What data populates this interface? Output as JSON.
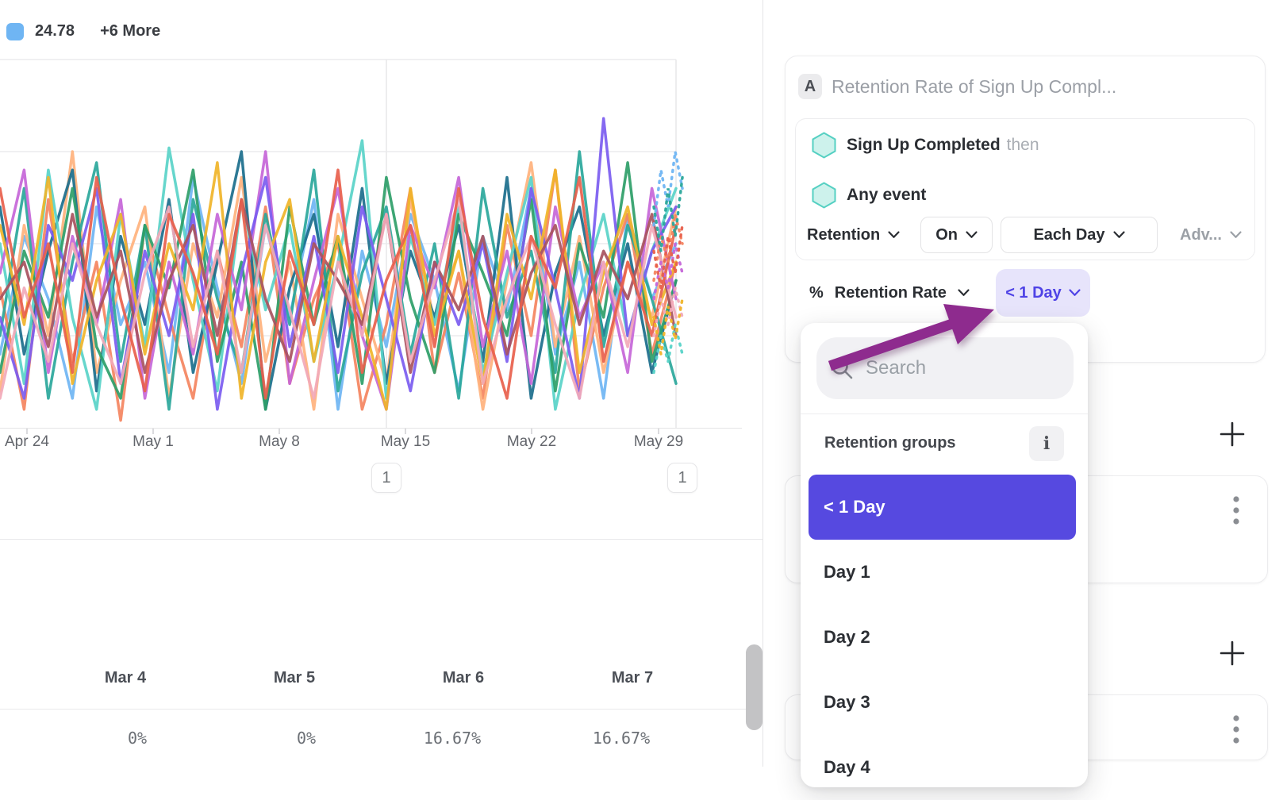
{
  "legend": {
    "swatch_color": "#6fb5f3",
    "series_label": "24.78",
    "more_label": "+6 More"
  },
  "chart_data": {
    "type": "line",
    "title": "",
    "xlabel": "",
    "ylabel": "",
    "x_tick_labels": [
      "Apr 24",
      "May 1",
      "May 8",
      "May 15",
      "May 22",
      "May 29"
    ],
    "x_tick_positions": [
      34,
      193,
      352,
      511,
      670,
      830
    ],
    "y_axis": {
      "min": 0,
      "max": 100,
      "gridline_values": [
        25,
        50,
        75,
        100
      ],
      "labels_visible": false
    },
    "grid": true,
    "legend_position": "top-left",
    "legend_visible_series": "24.78",
    "legend_hidden_count": 6,
    "annotation_markers": [
      {
        "label": "1",
        "x": 487
      },
      {
        "label": "1",
        "x": 852
      }
    ],
    "series": [
      {
        "name": "24.78",
        "color": "#6fb5f3",
        "values": [
          20,
          52,
          35,
          8,
          60,
          28,
          45,
          15,
          68,
          38,
          12,
          55,
          30,
          62,
          5,
          48,
          22,
          58,
          40,
          10,
          52,
          32,
          65,
          20,
          45,
          8,
          58,
          35,
          50
        ]
      },
      {
        "color": "#f4845f",
        "values": [
          38,
          5,
          62,
          18,
          45,
          2,
          55,
          30,
          8,
          48,
          22,
          60,
          12,
          35,
          50,
          5,
          28,
          65,
          15,
          42,
          8,
          55,
          25,
          70,
          10,
          38,
          58,
          20,
          45
        ]
      },
      {
        "color": "#ffb27d",
        "values": [
          10,
          55,
          25,
          75,
          15,
          40,
          60,
          8,
          50,
          30,
          68,
          18,
          45,
          5,
          58,
          35,
          12,
          62,
          28,
          48,
          5,
          40,
          72,
          22,
          52,
          15,
          45,
          30,
          60
        ]
      },
      {
        "color": "#1b6e8c",
        "values": [
          60,
          20,
          48,
          70,
          10,
          52,
          28,
          62,
          15,
          45,
          75,
          5,
          38,
          58,
          22,
          65,
          12,
          48,
          30,
          55,
          18,
          68,
          8,
          42,
          60,
          25,
          50,
          15,
          40
        ]
      },
      {
        "color": "#2aa79b",
        "values": [
          25,
          65,
          8,
          45,
          72,
          18,
          55,
          5,
          62,
          35,
          15,
          58,
          28,
          70,
          10,
          42,
          60,
          20,
          50,
          8,
          65,
          30,
          48,
          15,
          75,
          22,
          55,
          35,
          12
        ]
      },
      {
        "color": "#59d3c8",
        "values": [
          50,
          12,
          70,
          30,
          5,
          58,
          22,
          76,
          40,
          10,
          62,
          32,
          55,
          18,
          45,
          78,
          8,
          52,
          28,
          60,
          15,
          42,
          68,
          5,
          35,
          58,
          25,
          48,
          65
        ]
      },
      {
        "color": "#2e9e68",
        "values": [
          15,
          48,
          30,
          65,
          22,
          8,
          55,
          38,
          70,
          18,
          45,
          5,
          60,
          28,
          52,
          12,
          68,
          35,
          15,
          58,
          42,
          25,
          62,
          10,
          50,
          30,
          72,
          18,
          40
        ]
      },
      {
        "color": "#c566d8",
        "values": [
          42,
          70,
          15,
          52,
          28,
          62,
          8,
          45,
          20,
          58,
          32,
          75,
          12,
          40,
          65,
          25,
          5,
          55,
          38,
          68,
          22,
          48,
          12,
          60,
          30,
          45,
          15,
          65,
          35
        ]
      },
      {
        "color": "#7b5cf0",
        "values": [
          30,
          8,
          55,
          40,
          65,
          12,
          48,
          25,
          58,
          5,
          42,
          68,
          22,
          52,
          15,
          60,
          35,
          10,
          45,
          28,
          50,
          18,
          65,
          38,
          8,
          84,
          25,
          48,
          60
        ]
      },
      {
        "color": "#f0b429",
        "values": [
          55,
          28,
          68,
          12,
          40,
          58,
          20,
          50,
          32,
          72,
          8,
          45,
          62,
          18,
          52,
          30,
          5,
          65,
          25,
          48,
          12,
          58,
          35,
          70,
          15,
          42,
          60,
          28,
          45
        ]
      },
      {
        "color": "#a8535e",
        "values": [
          35,
          45,
          22,
          58,
          30,
          48,
          15,
          40,
          55,
          25,
          62,
          35,
          18,
          50,
          40,
          28,
          58,
          15,
          45,
          32,
          52,
          20,
          42,
          55,
          28,
          48,
          35,
          58,
          25
        ]
      },
      {
        "color": "#f2a9b8",
        "values": [
          8,
          38,
          18,
          50,
          28,
          12,
          42,
          60,
          22,
          48,
          15,
          55,
          32,
          8,
          45,
          25,
          58,
          18,
          40,
          62,
          12,
          35,
          52,
          28,
          8,
          45,
          22,
          55,
          30
        ]
      },
      {
        "color": "#e8604c",
        "values": [
          65,
          30,
          50,
          15,
          68,
          35,
          10,
          58,
          42,
          20,
          62,
          8,
          48,
          28,
          70,
          15,
          40,
          55,
          22,
          65,
          30,
          8,
          52,
          38,
          68,
          18,
          45,
          25,
          55
        ]
      }
    ],
    "trailing_dotted": [
      {
        "color": "#6fb5f3",
        "values": [
          55,
          70,
          60,
          75,
          65
        ]
      },
      {
        "color": "#f4845f",
        "values": [
          40,
          52,
          45,
          58,
          50
        ]
      },
      {
        "color": "#f2a9b8",
        "values": [
          25,
          35,
          28,
          38,
          30
        ]
      },
      {
        "color": "#2aa79b",
        "values": [
          60,
          48,
          65,
          52,
          68
        ]
      },
      {
        "color": "#c566d8",
        "values": [
          35,
          45,
          38,
          50,
          42
        ]
      },
      {
        "color": "#e8604c",
        "values": [
          48,
          38,
          52,
          42,
          55
        ]
      },
      {
        "color": "#59d3c8",
        "values": [
          15,
          25,
          18,
          28,
          20
        ]
      },
      {
        "color": "#f0b429",
        "values": [
          30,
          20,
          33,
          24,
          35
        ]
      }
    ]
  },
  "table": {
    "columns": [
      "Mar 4",
      "Mar 5",
      "Mar 6",
      "Mar 7"
    ],
    "values": [
      "0%",
      "0%",
      "16.67%",
      "16.67%"
    ]
  },
  "panel": {
    "card_a": {
      "badge": "A",
      "title": "Retention Rate of Sign Up Compl...",
      "event1": "Sign Up Completed",
      "event1_suffix": "then",
      "event2": "Any event",
      "controls": {
        "retention": "Retention",
        "on": "On",
        "each_day": "Each Day",
        "advanced": "Adv...",
        "metric_prefix": "%",
        "metric": "Retention Rate",
        "group_chip": "< 1 Day"
      }
    },
    "dropdown": {
      "search_placeholder": "Search",
      "section_label": "Retention groups",
      "info_glyph": "i",
      "items": [
        {
          "label": "< 1 Day",
          "selected": true
        },
        {
          "label": "Day 1",
          "selected": false
        },
        {
          "label": "Day 2",
          "selected": false
        },
        {
          "label": "Day 3",
          "selected": false
        },
        {
          "label": "Day 4",
          "selected": false
        }
      ]
    }
  },
  "colors": {
    "accent": "#5649e0",
    "chip_bg": "#e7e4fb",
    "chip_text": "#4f43e6",
    "arrow": "#8e2b8e",
    "hexagon_stroke": "#55d0c2",
    "hexagon_fill": "#cdf2ec"
  }
}
